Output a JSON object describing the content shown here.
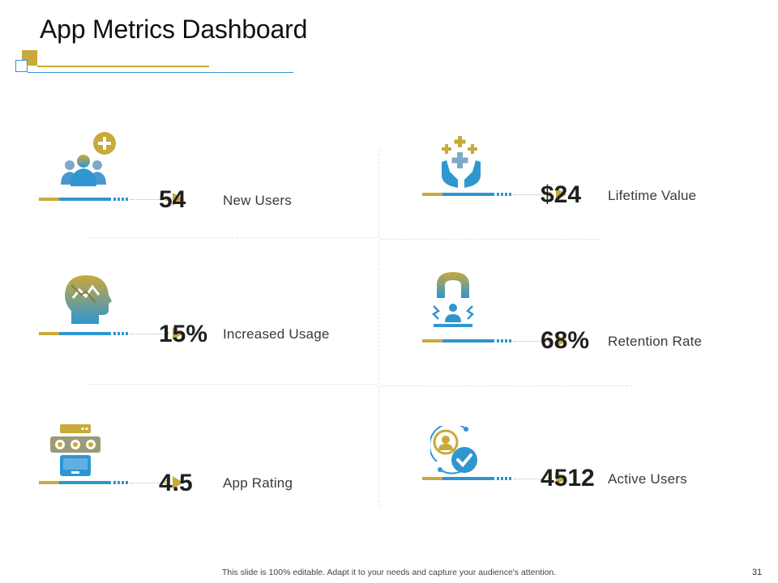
{
  "slide": {
    "title": "App Metrics Dashboard",
    "footer_text": "This slide is 100% editable. Adapt it to your needs and capture your audience's attention.",
    "page_number": "31"
  },
  "colors": {
    "gold": "#c9a93a",
    "blue": "#2f96d1",
    "text": "#1f1f1f"
  },
  "metrics": [
    {
      "icon": "users-add-icon",
      "value": "54",
      "label": "New Users"
    },
    {
      "icon": "hands-plus-icon",
      "value": "$24",
      "label": "Lifetime Value"
    },
    {
      "icon": "head-chart-icon",
      "value": "15%",
      "label": "Increased Usage"
    },
    {
      "icon": "magnet-user-icon",
      "value": "68%",
      "label": "Retention Rate"
    },
    {
      "icon": "rating-window-icon",
      "value": "4.5",
      "label": "App Rating"
    },
    {
      "icon": "user-check-icon",
      "value": "4512",
      "label": "Active Users"
    }
  ]
}
